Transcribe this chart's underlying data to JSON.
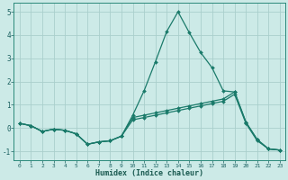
{
  "xlabel": "Humidex (Indice chaleur)",
  "background_color": "#cceae7",
  "grid_color": "#aacfcc",
  "line_color": "#1a7a6a",
  "xlim": [
    -0.5,
    23.5
  ],
  "ylim": [
    -1.4,
    5.4
  ],
  "yticks": [
    -1,
    0,
    1,
    2,
    3,
    4,
    5
  ],
  "xticks": [
    0,
    1,
    2,
    3,
    4,
    5,
    6,
    7,
    8,
    9,
    10,
    11,
    12,
    13,
    14,
    15,
    16,
    17,
    18,
    19,
    20,
    21,
    22,
    23
  ],
  "spike_x": [
    0,
    1,
    2,
    3,
    4,
    5,
    6,
    7,
    8,
    9,
    10,
    11,
    12,
    13,
    14,
    15,
    16,
    17,
    18,
    19,
    20,
    21,
    22,
    23
  ],
  "spike_y": [
    0.2,
    0.1,
    -0.15,
    -0.05,
    -0.1,
    -0.25,
    -0.7,
    -0.6,
    -0.55,
    -0.35,
    0.55,
    1.6,
    2.85,
    4.15,
    5.0,
    4.1,
    3.25,
    2.6,
    1.6,
    1.55,
    0.25,
    -0.5,
    -0.9,
    -0.95
  ],
  "line2_x": [
    0,
    1,
    2,
    3,
    4,
    5,
    6,
    7,
    8,
    9,
    10,
    11,
    12,
    13,
    14,
    15,
    16,
    17,
    18,
    19,
    20,
    21,
    22,
    23
  ],
  "line2_y": [
    0.2,
    0.1,
    -0.15,
    -0.05,
    -0.1,
    -0.25,
    -0.7,
    -0.6,
    -0.55,
    -0.35,
    0.45,
    0.55,
    0.65,
    0.75,
    0.85,
    0.95,
    1.05,
    1.15,
    1.25,
    1.55,
    0.25,
    -0.5,
    -0.9,
    -0.95
  ],
  "line3_x": [
    0,
    1,
    2,
    3,
    4,
    5,
    6,
    7,
    8,
    9,
    10,
    11,
    12,
    13,
    14,
    15,
    16,
    17,
    18,
    19,
    20,
    21,
    22,
    23
  ],
  "line3_y": [
    0.2,
    0.1,
    -0.15,
    -0.05,
    -0.1,
    -0.25,
    -0.7,
    -0.6,
    -0.55,
    -0.35,
    0.35,
    0.45,
    0.55,
    0.65,
    0.75,
    0.85,
    0.95,
    1.05,
    1.15,
    1.45,
    0.2,
    -0.55,
    -0.9,
    -0.95
  ]
}
